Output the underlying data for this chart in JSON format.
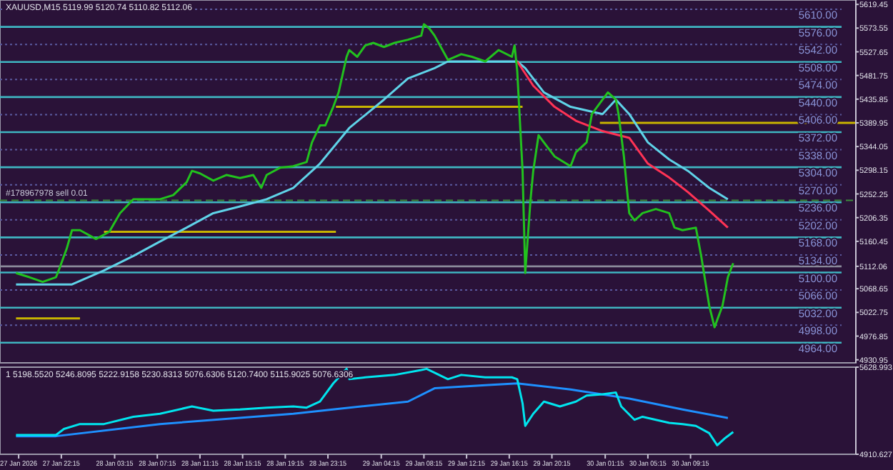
{
  "chart_data": [
    {
      "type": "line",
      "title": "XAUUSD,M15  5119.99 5120.74 5110.82 5112.06",
      "tick_labels": "y",
      "xlim": [
        "2026-01-27T16:30",
        "2026-01-31T00:45"
      ],
      "ylim": [
        4925,
        5628
      ],
      "yticks": [
        {
          "value": 5619.45,
          "label": "5619.45"
        },
        {
          "value": 5573.55,
          "label": "5573.55"
        },
        {
          "value": 5527.65,
          "label": "5527.65"
        },
        {
          "value": 5481.75,
          "label": "5481.75"
        },
        {
          "value": 5435.85,
          "label": "5435.85"
        },
        {
          "value": 5389.95,
          "label": "5389.95"
        },
        {
          "value": 5344.05,
          "label": "5344.05"
        },
        {
          "value": 5298.15,
          "label": "5298.15"
        },
        {
          "value": 5252.25,
          "label": "5252.25"
        },
        {
          "value": 5206.35,
          "label": "5206.35"
        },
        {
          "value": 5160.45,
          "label": "5160.45"
        },
        {
          "value": 5112.06,
          "label": "5112.06"
        },
        {
          "value": 5068.65,
          "label": "5068.65"
        },
        {
          "value": 5022.75,
          "label": "5022.75"
        },
        {
          "value": 4976.85,
          "label": "4976.85"
        },
        {
          "value": 4930.95,
          "label": "4930.95"
        }
      ],
      "ref_lines": [
        {
          "axis": "y",
          "value": 5610,
          "label": "5610.00",
          "color": "#5a5aa0",
          "line_style": "dotted"
        },
        {
          "axis": "y",
          "value": 5576,
          "label": "5576.00",
          "color": "#3fb6c2",
          "line_style": "solid"
        },
        {
          "axis": "y",
          "value": 5542,
          "label": "5542.00",
          "color": "#5a5aa0",
          "line_style": "dotted"
        },
        {
          "axis": "y",
          "value": 5508,
          "label": "5508.00",
          "color": "#3fb6c2",
          "line_style": "solid"
        },
        {
          "axis": "y",
          "value": 5474,
          "label": "5474.00",
          "color": "#5a5aa0",
          "line_style": "dotted"
        },
        {
          "axis": "y",
          "value": 5440,
          "label": "5440.00",
          "color": "#3fb6c2",
          "line_style": "solid"
        },
        {
          "axis": "y",
          "value": 5406,
          "label": "5406.00",
          "color": "#5a5aa0",
          "line_style": "dotted"
        },
        {
          "axis": "y",
          "value": 5372,
          "label": "5372.00",
          "color": "#3fb6c2",
          "line_style": "solid"
        },
        {
          "axis": "y",
          "value": 5338,
          "label": "5338.00",
          "color": "#5a5aa0",
          "line_style": "dotted"
        },
        {
          "axis": "y",
          "value": 5304,
          "label": "5304.00",
          "color": "#3fb6c2",
          "line_style": "solid"
        },
        {
          "axis": "y",
          "value": 5270,
          "label": "5270.00",
          "color": "#5a5aa0",
          "line_style": "dotted"
        },
        {
          "axis": "y",
          "value": 5236,
          "label": "5236.00",
          "color": "#3fb6c2",
          "line_style": "solid"
        },
        {
          "axis": "y",
          "value": 5202,
          "label": "5202.00",
          "color": "#5a5aa0",
          "line_style": "dotted"
        },
        {
          "axis": "y",
          "value": 5168,
          "label": "5168.00",
          "color": "#3fb6c2",
          "line_style": "solid"
        },
        {
          "axis": "y",
          "value": 5134,
          "label": "5134.00",
          "color": "#5a5aa0",
          "line_style": "dotted"
        },
        {
          "axis": "y",
          "value": 5100,
          "label": "5100.00",
          "color": "#3fb6c2",
          "line_style": "solid"
        },
        {
          "axis": "y",
          "value": 5066,
          "label": "5066.00",
          "color": "#5a5aa0",
          "line_style": "dotted"
        },
        {
          "axis": "y",
          "value": 5032,
          "label": "5032.00",
          "color": "#3fb6c2",
          "line_style": "solid"
        },
        {
          "axis": "y",
          "value": 4998,
          "label": "4998.00",
          "color": "#5a5aa0",
          "line_style": "dotted"
        },
        {
          "axis": "y",
          "value": 4964,
          "label": "4964.00",
          "color": "#3fb6c2",
          "line_style": "solid"
        },
        {
          "axis": "y",
          "value": 5240,
          "label": "#178967978 sell 0.01",
          "color": "#3c8c3c",
          "line_style": "dashed"
        },
        {
          "axis": "y",
          "value": 5112.06,
          "color": "#8a8a9a",
          "line_style": "solid"
        }
      ],
      "series": [
        {
          "color": "#c8b400",
          "x": [
            "2026-01-27T18:00",
            "2026-01-28T00:00"
          ],
          "values": [
            5011,
            5011
          ]
        },
        {
          "color": "#c8b400",
          "x": [
            "2026-01-28T02:15",
            "2026-01-29T00:00"
          ],
          "values": [
            5179,
            5179
          ]
        },
        {
          "color": "#c8b400",
          "x": [
            "2026-01-29T00:00",
            "2026-01-29T17:30"
          ],
          "values": [
            5421,
            5421
          ]
        },
        {
          "color": "#c8b400",
          "x": [
            "2026-01-30T00:45",
            "2026-01-31T00:45"
          ],
          "values": [
            5390,
            5390
          ]
        },
        {
          "color": "#5fd3e8",
          "x": [
            "2026-01-27T18:00",
            "2026-01-27T23:15",
            "2026-01-28T02:15",
            "2026-01-28T05:00",
            "2026-01-28T07:30",
            "2026-01-28T10:00",
            "2026-01-28T12:30",
            "2026-01-28T15:00",
            "2026-01-28T17:30",
            "2026-01-28T20:00",
            "2026-01-28T22:30",
            "2026-01-29T01:15",
            "2026-01-29T04:30",
            "2026-01-29T06:45",
            "2026-01-29T09:15",
            "2026-01-29T10:30",
            "2026-01-29T17:00",
            "2026-01-29T17:45",
            "2026-01-29T19:30",
            "2026-01-29T22:00",
            "2026-01-30T01:00",
            "2026-01-30T02:15",
            "2026-01-30T03:30",
            "2026-01-30T05:15",
            "2026-01-30T07:15",
            "2026-01-30T09:00",
            "2026-01-30T11:00",
            "2026-01-30T12:45"
          ],
          "values": [
            5077,
            5077,
            5104,
            5132,
            5160,
            5187,
            5215,
            5228,
            5242,
            5264,
            5311,
            5380,
            5435,
            5476,
            5496,
            5509,
            5509,
            5496,
            5449,
            5421,
            5407,
            5435,
            5407,
            5352,
            5319,
            5297,
            5264,
            5242
          ]
        },
        {
          "color": "#ff3355",
          "x": [
            "2026-01-29T17:00",
            "2026-01-29T18:30",
            "2026-01-29T20:30",
            "2026-01-29T22:30",
            "2026-01-30T01:00",
            "2026-01-30T03:30",
            "2026-01-30T05:15",
            "2026-01-30T07:15",
            "2026-01-30T09:00",
            "2026-01-30T11:00",
            "2026-01-30T12:45"
          ],
          "values": [
            5509,
            5462,
            5421,
            5394,
            5374,
            5361,
            5311,
            5284,
            5256,
            5220,
            5187
          ]
        },
        {
          "color": "#22c21e",
          "x": [
            "2026-01-27T18:00",
            "2026-01-27T19:15",
            "2026-01-27T20:30",
            "2026-01-27T21:45",
            "2026-01-27T22:00",
            "2026-01-27T22:45",
            "2026-01-27T23:15",
            "2026-01-28T00:00",
            "2026-01-28T01:30",
            "2026-01-28T02:45",
            "2026-01-28T03:45",
            "2026-01-28T05:00",
            "2026-01-28T06:15",
            "2026-01-28T07:30",
            "2026-01-28T08:45",
            "2026-01-28T10:00",
            "2026-01-28T10:30",
            "2026-01-28T11:15",
            "2026-01-28T12:30",
            "2026-01-28T13:45",
            "2026-01-28T15:00",
            "2026-01-28T16:15",
            "2026-01-28T17:00",
            "2026-01-28T17:30",
            "2026-01-28T18:45",
            "2026-01-28T20:00",
            "2026-01-28T21:15",
            "2026-01-28T21:45",
            "2026-01-28T22:30",
            "2026-01-28T23:00",
            "2026-01-28T23:45",
            "2026-01-29T00:15",
            "2026-01-29T01:00",
            "2026-01-29T01:15",
            "2026-01-29T02:00",
            "2026-01-29T02:45",
            "2026-01-29T03:30",
            "2026-01-29T04:30",
            "2026-01-29T05:30",
            "2026-01-29T06:45",
            "2026-01-29T08:00",
            "2026-01-29T08:15",
            "2026-01-29T08:45",
            "2026-01-29T09:15",
            "2026-01-29T09:45",
            "2026-01-29T10:30",
            "2026-01-29T11:45",
            "2026-01-29T12:45",
            "2026-01-29T14:00",
            "2026-01-29T15:15",
            "2026-01-29T16:30",
            "2026-01-29T16:45",
            "2026-01-29T17:00",
            "2026-01-29T17:30",
            "2026-01-29T17:45",
            "2026-01-29T18:15",
            "2026-01-29T18:30",
            "2026-01-29T19:00",
            "2026-01-29T19:30",
            "2026-01-29T20:30",
            "2026-01-29T22:00",
            "2026-01-29T22:30",
            "2026-01-29T23:30",
            "2026-01-30T00:00",
            "2026-01-30T01:00",
            "2026-01-30T01:30",
            "2026-01-30T02:15",
            "2026-01-30T02:30",
            "2026-01-30T03:00",
            "2026-01-30T03:30",
            "2026-01-30T04:00",
            "2026-01-30T04:45",
            "2026-01-30T06:00",
            "2026-01-30T07:15",
            "2026-01-30T07:45",
            "2026-01-30T08:30",
            "2026-01-30T09:45",
            "2026-01-30T10:15",
            "2026-01-30T11:00",
            "2026-01-30T11:30",
            "2026-01-30T12:15",
            "2026-01-30T12:45",
            "2026-01-30T13:15"
          ],
          "values": [
            5099,
            5091,
            5082,
            5091,
            5104,
            5146,
            5182,
            5182,
            5165,
            5179,
            5215,
            5242,
            5242,
            5242,
            5250,
            5275,
            5297,
            5292,
            5278,
            5289,
            5283,
            5289,
            5264,
            5289,
            5303,
            5306,
            5314,
            5352,
            5385,
            5385,
            5421,
            5449,
            5518,
            5531,
            5518,
            5540,
            5545,
            5537,
            5545,
            5551,
            5559,
            5581,
            5573,
            5559,
            5540,
            5512,
            5523,
            5518,
            5509,
            5531,
            5518,
            5540,
            5490,
            5297,
            5099,
            5242,
            5297,
            5366,
            5352,
            5325,
            5306,
            5333,
            5352,
            5407,
            5435,
            5449,
            5435,
            5407,
            5325,
            5215,
            5201,
            5215,
            5223,
            5215,
            5187,
            5182,
            5187,
            5132,
            5036,
            4994,
            5036,
            5091,
            5118
          ]
        }
      ]
    },
    {
      "type": "line",
      "title": "1 5198.5520 5246.8095 5222.9158 5230.8313 5076.6306 5120.7400 5115.9025 5076.6306",
      "xlim": [
        "2026-01-27T16:30",
        "2026-01-31T00:45"
      ],
      "ylim": [
        4910.627,
        5628.993
      ],
      "yticks": [
        {
          "value": 5628.993,
          "label": "5628.993"
        },
        {
          "value": 4910.627,
          "label": "4910.627"
        }
      ],
      "xticks": [
        {
          "value": "2026-01-27T18:15",
          "label": "27 Jan 2026"
        },
        {
          "value": "2026-01-27T22:15",
          "label": "27 Jan 22:15"
        },
        {
          "value": "2026-01-28T03:15",
          "label": "28 Jan 03:15"
        },
        {
          "value": "2026-01-28T07:15",
          "label": "28 Jan 07:15"
        },
        {
          "value": "2026-01-28T11:15",
          "label": "28 Jan 11:15"
        },
        {
          "value": "2026-01-28T15:15",
          "label": "28 Jan 15:15"
        },
        {
          "value": "2026-01-28T19:15",
          "label": "28 Jan 19:15"
        },
        {
          "value": "2026-01-28T23:15",
          "label": "28 Jan 23:15"
        },
        {
          "value": "2026-01-29T04:15",
          "label": "29 Jan 04:15"
        },
        {
          "value": "2026-01-29T08:15",
          "label": "29 Jan 08:15"
        },
        {
          "value": "2026-01-29T12:15",
          "label": "29 Jan 12:15"
        },
        {
          "value": "2026-01-29T16:15",
          "label": "29 Jan 16:15"
        },
        {
          "value": "2026-01-29T20:15",
          "label": "29 Jan 20:15"
        },
        {
          "value": "2026-01-30T01:15",
          "label": "30 Jan 01:15"
        },
        {
          "value": "2026-01-30T05:15",
          "label": "30 Jan 05:15"
        },
        {
          "value": "2026-01-30T09:15",
          "label": "30 Jan 09:15"
        }
      ],
      "series": [
        {
          "color": "#1e90ff",
          "x": [
            "2026-01-27T18:00",
            "2026-01-27T21:45",
            "2026-01-28T07:30",
            "2026-01-28T20:00",
            "2026-01-29T01:15",
            "2026-01-29T06:45",
            "2026-01-29T09:15",
            "2026-01-29T14:00",
            "2026-01-29T17:00",
            "2026-01-29T22:00",
            "2026-01-30T03:30",
            "2026-01-30T08:30",
            "2026-01-30T12:45"
          ],
          "values": [
            5060,
            5060,
            5160,
            5245,
            5295,
            5345,
            5455,
            5480,
            5495,
            5445,
            5370,
            5280,
            5210
          ]
        },
        {
          "color": "#00e5ee",
          "x": [
            "2026-01-27T18:00",
            "2026-01-27T21:45",
            "2026-01-27T22:30",
            "2026-01-28T00:00",
            "2026-01-28T02:15",
            "2026-01-28T05:00",
            "2026-01-28T07:30",
            "2026-01-28T10:30",
            "2026-01-28T12:30",
            "2026-01-28T15:00",
            "2026-01-28T17:30",
            "2026-01-28T20:00",
            "2026-01-28T21:15",
            "2026-01-28T22:30",
            "2026-01-28T23:45",
            "2026-01-29T01:00",
            "2026-01-29T01:15",
            "2026-01-29T02:45",
            "2026-01-29T05:30",
            "2026-01-29T08:00",
            "2026-01-29T08:30",
            "2026-01-29T10:30",
            "2026-01-29T11:45",
            "2026-01-29T14:00",
            "2026-01-29T16:30",
            "2026-01-29T17:00",
            "2026-01-29T17:30",
            "2026-01-29T17:45",
            "2026-01-29T18:30",
            "2026-01-29T19:30",
            "2026-01-29T21:00",
            "2026-01-29T22:30",
            "2026-01-29T23:30",
            "2026-01-30T01:00",
            "2026-01-30T02:15",
            "2026-01-30T02:45",
            "2026-01-30T04:00",
            "2026-01-30T04:45",
            "2026-01-30T06:00",
            "2026-01-30T07:15",
            "2026-01-30T08:30",
            "2026-01-30T09:45",
            "2026-01-30T11:00",
            "2026-01-30T11:45",
            "2026-01-30T12:30",
            "2026-01-30T13:15"
          ],
          "values": [
            5070,
            5070,
            5120,
            5160,
            5160,
            5220,
            5245,
            5305,
            5270,
            5280,
            5295,
            5305,
            5295,
            5345,
            5495,
            5615,
            5530,
            5545,
            5565,
            5605,
            5615,
            5530,
            5565,
            5545,
            5545,
            5530,
            5330,
            5145,
            5245,
            5345,
            5305,
            5345,
            5395,
            5405,
            5420,
            5305,
            5195,
            5220,
            5195,
            5170,
            5160,
            5145,
            5085,
            4985,
            5045,
            5095
          ]
        }
      ]
    }
  ]
}
